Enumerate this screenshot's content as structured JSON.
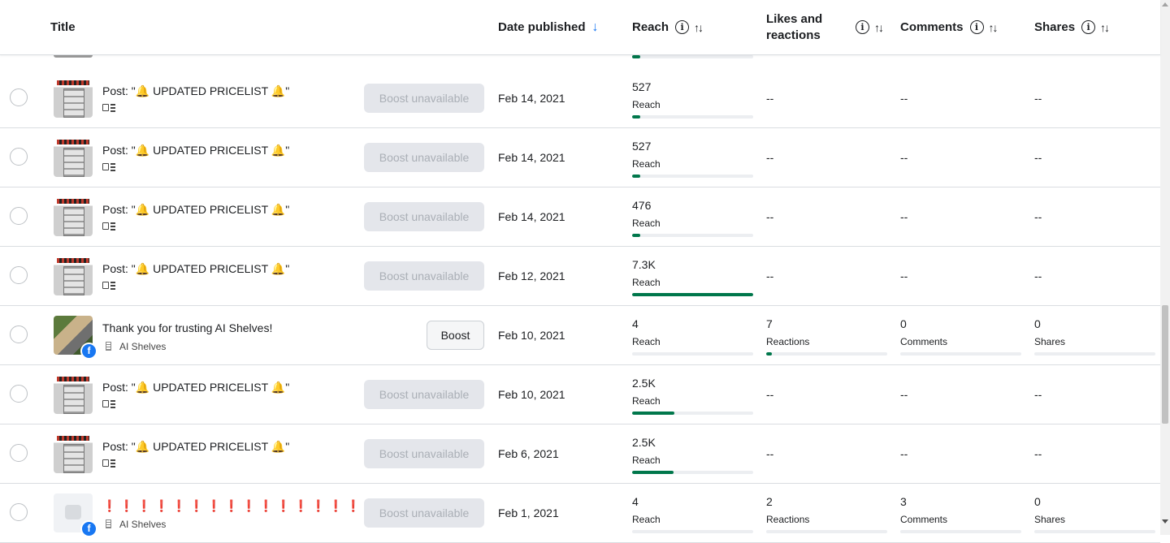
{
  "header": {
    "title": "Title",
    "date_published": "Date published",
    "reach": "Reach",
    "likes_reactions": "Likes and reactions",
    "comments": "Comments",
    "shares": "Shares",
    "info_icon": "info-icon",
    "sort_icon": "sort-icon",
    "sort_active_icon": "arrow-down-icon"
  },
  "partial_row": {
    "reach_fraction": 0.07
  },
  "colors": {
    "bar_fill": "#00774b",
    "bar_track": "#eceef1",
    "facebook_blue": "#1877f2",
    "alert_red": "#e41e3f"
  },
  "rows": [
    {
      "title": "Post: \"🔔 UPDATED PRICELIST 🔔\"",
      "thumbnail": "pricelist-image",
      "action": "Boost unavailable",
      "date": "Feb 14, 2021",
      "reach": {
        "value": "527",
        "label": "Reach",
        "fraction": 0.07
      },
      "likes": "--",
      "comments": "--",
      "shares": "--"
    },
    {
      "title": "Post: \"🔔 UPDATED PRICELIST 🔔\"",
      "thumbnail": "pricelist-image",
      "action": "Boost unavailable",
      "date": "Feb 14, 2021",
      "reach": {
        "value": "527",
        "label": "Reach",
        "fraction": 0.07
      },
      "likes": "--",
      "comments": "--",
      "shares": "--"
    },
    {
      "title": "Post: \"🔔 UPDATED PRICELIST 🔔\"",
      "thumbnail": "pricelist-image",
      "action": "Boost unavailable",
      "date": "Feb 14, 2021",
      "reach": {
        "value": "476",
        "label": "Reach",
        "fraction": 0.065
      },
      "likes": "--",
      "comments": "--",
      "shares": "--"
    },
    {
      "title": "Post: \"🔔 UPDATED PRICELIST 🔔\"",
      "thumbnail": "pricelist-image",
      "action": "Boost unavailable",
      "date": "Feb 12, 2021",
      "reach": {
        "value": "7.3K",
        "label": "Reach",
        "fraction": 1.0
      },
      "likes": "--",
      "comments": "--",
      "shares": "--"
    },
    {
      "title": "Thank you for trusting AI Shelves!",
      "page": "AI Shelves",
      "thumbnail": "photo-image",
      "action": "Boost",
      "date": "Feb 10, 2021",
      "reach": {
        "value": "4",
        "label": "Reach",
        "fraction": 0.0
      },
      "likes": {
        "value": "7",
        "label": "Reactions",
        "fraction": 0.05
      },
      "comments": {
        "value": "0",
        "label": "Comments",
        "fraction": 0.0
      },
      "shares": {
        "value": "0",
        "label": "Shares",
        "fraction": 0.0
      }
    },
    {
      "title": "Post: \"🔔 UPDATED PRICELIST 🔔\"",
      "thumbnail": "pricelist-image",
      "action": "Boost unavailable",
      "date": "Feb 10, 2021",
      "reach": {
        "value": "2.5K",
        "label": "Reach",
        "fraction": 0.35
      },
      "likes": "--",
      "comments": "--",
      "shares": "--"
    },
    {
      "title": "Post: \"🔔 UPDATED PRICELIST 🔔\"",
      "thumbnail": "pricelist-image",
      "action": "Boost unavailable",
      "date": "Feb 6, 2021",
      "reach": {
        "value": "2.5K",
        "label": "Reach",
        "fraction": 0.34
      },
      "likes": "--",
      "comments": "--",
      "shares": "--"
    },
    {
      "title": "❗❗❗❗❗❗❗❗❗❗❗❗❗❗❗...",
      "page": "AI Shelves",
      "thumbnail": "empty-image",
      "action": "Boost unavailable",
      "date": "Feb 1, 2021",
      "reach": {
        "value": "4",
        "label": "Reach",
        "fraction": 0.0
      },
      "likes": {
        "value": "2",
        "label": "Reactions",
        "fraction": 0.0
      },
      "comments": {
        "value": "3",
        "label": "Comments",
        "fraction": 0.0
      },
      "shares": {
        "value": "0",
        "label": "Shares",
        "fraction": 0.0
      }
    }
  ]
}
